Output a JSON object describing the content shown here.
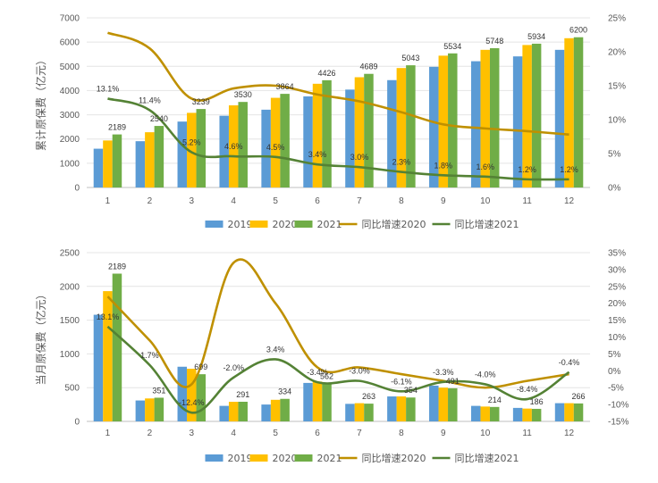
{
  "chart_data": [
    {
      "type": "bar",
      "ylabel": "累计原保费（亿元）",
      "categories": [
        "1",
        "2",
        "3",
        "4",
        "5",
        "6",
        "7",
        "8",
        "9",
        "10",
        "11",
        "12"
      ],
      "ylim": [
        0,
        7000
      ],
      "yticks": [
        "0",
        "1000",
        "2000",
        "3000",
        "4000",
        "5000",
        "6000",
        "7000"
      ],
      "y2lim": [
        0,
        25
      ],
      "y2ticks": [
        "0%",
        "5%",
        "10%",
        "15%",
        "20%",
        "25%"
      ],
      "series": [
        {
          "name": "2019",
          "kind": "bar",
          "color": "#5B9BD5",
          "values": [
            1600,
            1910,
            2720,
            2960,
            3210,
            3760,
            4040,
            4430,
            4980,
            5210,
            5410,
            5680
          ]
        },
        {
          "name": "2020",
          "kind": "bar",
          "color": "#FFC000",
          "values": [
            1940,
            2280,
            3080,
            3390,
            3700,
            4280,
            4550,
            4930,
            5440,
            5680,
            5880,
            6160
          ]
        },
        {
          "name": "2021",
          "kind": "bar",
          "color": "#70AD47",
          "values": [
            2189,
            2540,
            3239,
            3530,
            3864,
            4426,
            4689,
            5043,
            5534,
            5748,
            5934,
            6200
          ]
        },
        {
          "name": "同比增速2020",
          "kind": "line",
          "axis": "right",
          "color": "#BF9000",
          "values": [
            22.8,
            20.5,
            13.1,
            14.6,
            15.0,
            13.7,
            12.7,
            11.1,
            9.3,
            8.7,
            8.3,
            7.8
          ]
        },
        {
          "name": "同比增速2021",
          "kind": "line",
          "axis": "right",
          "color": "#548235",
          "values": [
            13.1,
            11.4,
            5.2,
            4.6,
            4.5,
            3.4,
            3.0,
            2.3,
            1.8,
            1.6,
            1.2,
            1.2
          ]
        }
      ],
      "bar_labels": [
        "2189",
        "2540",
        "3239",
        "3530",
        "3864",
        "4426",
        "4689",
        "5043",
        "5534",
        "5748",
        "5934",
        "6200"
      ],
      "line_labels": [
        "13.1%",
        "11.4%",
        "5.2%",
        "4.6%",
        "4.5%",
        "3.4%",
        "3.0%",
        "2.3%",
        "1.8%",
        "1.6%",
        "1.2%",
        "1.2%"
      ],
      "legend": "bottom"
    },
    {
      "type": "bar",
      "ylabel": "当月原保费（亿元）",
      "categories": [
        "1",
        "2",
        "3",
        "4",
        "5",
        "6",
        "7",
        "8",
        "9",
        "10",
        "11",
        "12"
      ],
      "ylim": [
        0,
        2500
      ],
      "yticks": [
        "0",
        "500",
        "1000",
        "1500",
        "2000",
        "2500"
      ],
      "y2lim": [
        -15,
        35
      ],
      "y2ticks": [
        "-15%",
        "-10%",
        "-5%",
        "0%",
        "5%",
        "10%",
        "15%",
        "20%",
        "25%",
        "30%",
        "35%"
      ],
      "series": [
        {
          "name": "2019",
          "kind": "bar",
          "color": "#5B9BD5",
          "values": [
            1580,
            310,
            810,
            230,
            250,
            570,
            260,
            370,
            530,
            230,
            200,
            270
          ]
        },
        {
          "name": "2020",
          "kind": "bar",
          "color": "#FFC000",
          "values": [
            1930,
            340,
            780,
            290,
            320,
            590,
            270,
            370,
            500,
            220,
            190,
            270
          ]
        },
        {
          "name": "2021",
          "kind": "bar",
          "color": "#70AD47",
          "values": [
            2189,
            351,
            699,
            291,
            334,
            562,
            263,
            354,
            491,
            214,
            186,
            266
          ]
        },
        {
          "name": "同比增速2020",
          "kind": "line",
          "axis": "right",
          "color": "#BF9000",
          "values": [
            22,
            9,
            -4,
            32,
            20,
            1,
            1,
            -1,
            -3,
            -5,
            -3,
            -1
          ]
        },
        {
          "name": "同比增速2021",
          "kind": "line",
          "axis": "right",
          "color": "#548235",
          "values": [
            13.1,
            1.7,
            -12.4,
            -2.0,
            3.4,
            -3.4,
            -3.0,
            -6.1,
            -3.3,
            -4.0,
            -8.4,
            -0.4
          ]
        }
      ],
      "bar_labels": [
        "2189",
        "351",
        "699",
        "291",
        "334",
        "562",
        "263",
        "354",
        "491",
        "214",
        "186",
        "266"
      ],
      "line_labels": [
        "13.1%",
        "1.7%",
        "-12.4%",
        "-2.0%",
        "3.4%",
        "-3.4%",
        "-3.0%",
        "-6.1%",
        "-3.3%",
        "-4.0%",
        "-8.4%",
        "-0.4%"
      ],
      "legend": "bottom"
    }
  ]
}
